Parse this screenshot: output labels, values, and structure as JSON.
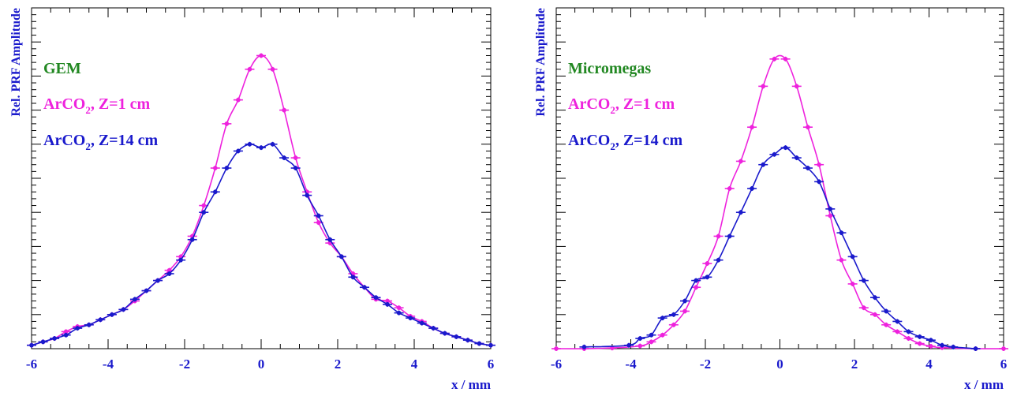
{
  "colors": {
    "pink": "#ee22dd",
    "blue": "#1a1acc",
    "green": "#228822",
    "axis": "#1a1acc"
  },
  "chart_data": [
    {
      "type": "scatter",
      "title": "",
      "xlabel": "x / mm",
      "ylabel": "Rel. PRF Amplitude",
      "xlim": [
        -6,
        6
      ],
      "ylim": [
        0,
        1
      ],
      "x_ticks": [
        "-6",
        "-4",
        "-2",
        "0",
        "2",
        "4",
        "6"
      ],
      "grid": false,
      "legend": {
        "position": "top-left",
        "header": "GEM",
        "entries": [
          {
            "base": "ArCO",
            "sub": "2",
            "rest": ", Z=1 cm",
            "series": 0
          },
          {
            "base": "ArCO",
            "sub": "2",
            "rest": ", Z=14 cm",
            "series": 1
          }
        ]
      },
      "series": [
        {
          "name": "ArCO2, Z=1 cm",
          "color": "#ee22dd",
          "x": [
            -6,
            -5.7,
            -5.4,
            -5.1,
            -4.8,
            -4.5,
            -4.2,
            -3.9,
            -3.6,
            -3.3,
            -3,
            -2.7,
            -2.4,
            -2.1,
            -1.8,
            -1.5,
            -1.2,
            -0.9,
            -0.6,
            -0.3,
            0,
            0.3,
            0.6,
            0.9,
            1.2,
            1.5,
            1.8,
            2.1,
            2.4,
            2.7,
            3,
            3.3,
            3.6,
            3.9,
            4.2,
            4.5,
            4.8,
            5.1,
            5.4,
            5.7,
            6
          ],
          "y": [
            0.01,
            0.02,
            0.03,
            0.05,
            0.065,
            0.07,
            0.085,
            0.1,
            0.115,
            0.14,
            0.17,
            0.2,
            0.23,
            0.27,
            0.33,
            0.42,
            0.53,
            0.66,
            0.73,
            0.82,
            0.86,
            0.82,
            0.7,
            0.56,
            0.46,
            0.37,
            0.31,
            0.27,
            0.22,
            0.18,
            0.145,
            0.14,
            0.12,
            0.095,
            0.08,
            0.06,
            0.045,
            0.035,
            0.025,
            0.015,
            0.01
          ]
        },
        {
          "name": "ArCO2, Z=14 cm",
          "color": "#1a1acc",
          "x": [
            -6,
            -5.7,
            -5.4,
            -5.1,
            -4.8,
            -4.5,
            -4.2,
            -3.9,
            -3.6,
            -3.3,
            -3,
            -2.7,
            -2.4,
            -2.1,
            -1.8,
            -1.5,
            -1.2,
            -0.9,
            -0.6,
            -0.3,
            0,
            0.3,
            0.6,
            0.9,
            1.2,
            1.5,
            1.8,
            2.1,
            2.4,
            2.7,
            3,
            3.3,
            3.6,
            3.9,
            4.2,
            4.5,
            4.8,
            5.1,
            5.4,
            5.7,
            6
          ],
          "y": [
            0.01,
            0.02,
            0.03,
            0.04,
            0.06,
            0.07,
            0.085,
            0.1,
            0.115,
            0.145,
            0.17,
            0.2,
            0.22,
            0.26,
            0.32,
            0.4,
            0.46,
            0.53,
            0.58,
            0.6,
            0.59,
            0.6,
            0.56,
            0.53,
            0.45,
            0.39,
            0.32,
            0.27,
            0.21,
            0.18,
            0.15,
            0.13,
            0.105,
            0.09,
            0.075,
            0.06,
            0.045,
            0.035,
            0.025,
            0.015,
            0.01
          ]
        }
      ]
    },
    {
      "type": "scatter",
      "title": "",
      "xlabel": "x / mm",
      "ylabel": "Rel. PRF Amplitude",
      "xlim": [
        -6,
        6
      ],
      "ylim": [
        0,
        1
      ],
      "x_ticks": [
        "-6",
        "-4",
        "-2",
        "0",
        "2",
        "4",
        "6"
      ],
      "grid": false,
      "legend": {
        "position": "top-left",
        "header": "Micromegas",
        "entries": [
          {
            "base": "ArCO",
            "sub": "2",
            "rest": ", Z=1 cm",
            "series": 0
          },
          {
            "base": "ArCO",
            "sub": "2",
            "rest": ", Z=14 cm",
            "series": 1
          }
        ]
      },
      "series": [
        {
          "name": "ArCO2, Z=1 cm",
          "color": "#ee22dd",
          "x": [
            -6,
            -5.25,
            -4.5,
            -3.75,
            -3.45,
            -3.15,
            -2.85,
            -2.55,
            -2.25,
            -1.95,
            -1.65,
            -1.35,
            -1.05,
            -0.75,
            -0.45,
            -0.15,
            0.15,
            0.45,
            0.75,
            1.05,
            1.35,
            1.65,
            1.95,
            2.25,
            2.55,
            2.85,
            3.15,
            3.45,
            3.75,
            4.05,
            4.35,
            5.25,
            6
          ],
          "y": [
            0,
            0,
            0.002,
            0.008,
            0.02,
            0.04,
            0.07,
            0.11,
            0.18,
            0.25,
            0.33,
            0.47,
            0.55,
            0.65,
            0.77,
            0.85,
            0.85,
            0.77,
            0.65,
            0.54,
            0.39,
            0.26,
            0.19,
            0.12,
            0.1,
            0.07,
            0.05,
            0.03,
            0.015,
            0.007,
            0.003,
            0,
            0
          ]
        },
        {
          "name": "ArCO2, Z=14 cm",
          "color": "#1a1acc",
          "x": [
            -5.25,
            -4.05,
            -3.75,
            -3.45,
            -3.15,
            -2.85,
            -2.55,
            -2.25,
            -1.95,
            -1.65,
            -1.35,
            -1.05,
            -0.75,
            -0.45,
            -0.15,
            0.15,
            0.45,
            0.75,
            1.05,
            1.35,
            1.65,
            1.95,
            2.25,
            2.55,
            2.85,
            3.15,
            3.45,
            3.75,
            4.05,
            4.35,
            4.65,
            5.25
          ],
          "y": [
            0.005,
            0.01,
            0.03,
            0.04,
            0.09,
            0.1,
            0.14,
            0.2,
            0.21,
            0.26,
            0.33,
            0.4,
            0.47,
            0.54,
            0.57,
            0.59,
            0.56,
            0.53,
            0.49,
            0.41,
            0.34,
            0.27,
            0.2,
            0.15,
            0.11,
            0.08,
            0.05,
            0.035,
            0.025,
            0.01,
            0.005,
            0
          ]
        }
      ]
    }
  ]
}
